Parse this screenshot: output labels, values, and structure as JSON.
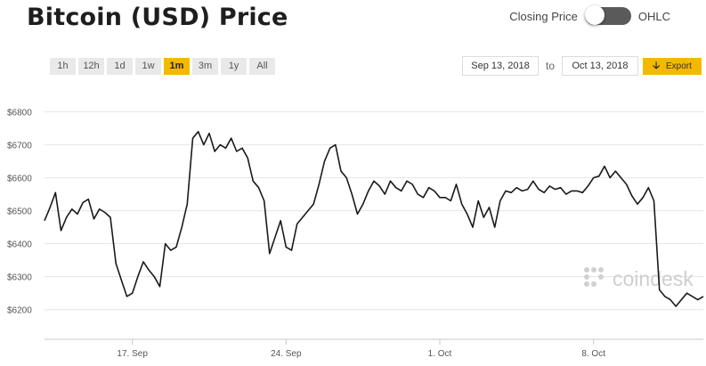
{
  "header": {
    "title": "Bitcoin (USD) Price",
    "toggle_left_label": "Closing Price",
    "toggle_right_label": "OHLC"
  },
  "ranges": [
    {
      "label": "1h",
      "active": false
    },
    {
      "label": "12h",
      "active": false
    },
    {
      "label": "1d",
      "active": false
    },
    {
      "label": "1w",
      "active": false
    },
    {
      "label": "1m",
      "active": true
    },
    {
      "label": "3m",
      "active": false
    },
    {
      "label": "1y",
      "active": false
    },
    {
      "label": "All",
      "active": false
    }
  ],
  "date_range": {
    "from": "Sep 13, 2018",
    "to_label": "to",
    "to": "Oct 13, 2018",
    "export_label": "Export",
    "export_icon": "arrow-down-icon"
  },
  "watermark": {
    "text": "coindesk"
  },
  "colors": {
    "accent": "#f5b800",
    "line": "#1a1a1a",
    "grid": "#e6e6e6"
  },
  "chart_data": {
    "type": "line",
    "title": "Bitcoin (USD) Price",
    "xlabel": "",
    "ylabel": "",
    "x_range": [
      "2018-09-13",
      "2018-10-13"
    ],
    "ylim": [
      6110,
      6880
    ],
    "grid": true,
    "y_ticks": [
      {
        "value": 6200,
        "label": "$6200"
      },
      {
        "value": 6300,
        "label": "$6300"
      },
      {
        "value": 6400,
        "label": "$6400"
      },
      {
        "value": 6500,
        "label": "$6500"
      },
      {
        "value": 6600,
        "label": "$6600"
      },
      {
        "value": 6700,
        "label": "$6700"
      },
      {
        "value": 6800,
        "label": "$6800"
      }
    ],
    "x_ticks": [
      {
        "value": "2018-09-17",
        "label": "17. Sep"
      },
      {
        "value": "2018-09-24",
        "label": "24. Sep"
      },
      {
        "value": "2018-10-01",
        "label": "1. Oct"
      },
      {
        "value": "2018-10-08",
        "label": "8. Oct"
      }
    ],
    "series": [
      {
        "x": [
          "2018-09-13T00:00",
          "2018-09-13T06:00",
          "2018-09-13T12:00",
          "2018-09-13T18:00",
          "2018-09-14T00:00",
          "2018-09-14T06:00",
          "2018-09-14T12:00",
          "2018-09-14T18:00",
          "2018-09-15T00:00",
          "2018-09-15T06:00",
          "2018-09-15T12:00",
          "2018-09-15T18:00",
          "2018-09-16T00:00",
          "2018-09-16T06:00",
          "2018-09-16T12:00",
          "2018-09-16T18:00",
          "2018-09-17T00:00",
          "2018-09-17T06:00",
          "2018-09-17T12:00",
          "2018-09-17T18:00",
          "2018-09-18T00:00",
          "2018-09-18T06:00",
          "2018-09-18T12:00",
          "2018-09-18T18:00",
          "2018-09-19T00:00",
          "2018-09-19T06:00",
          "2018-09-19T12:00",
          "2018-09-19T18:00",
          "2018-09-20T00:00",
          "2018-09-20T06:00",
          "2018-09-20T12:00",
          "2018-09-20T18:00",
          "2018-09-21T00:00",
          "2018-09-21T06:00",
          "2018-09-21T12:00",
          "2018-09-21T18:00",
          "2018-09-22T00:00",
          "2018-09-22T06:00",
          "2018-09-22T12:00",
          "2018-09-22T18:00",
          "2018-09-23T00:00",
          "2018-09-23T06:00",
          "2018-09-23T12:00",
          "2018-09-23T18:00",
          "2018-09-24T00:00",
          "2018-09-24T06:00",
          "2018-09-24T12:00",
          "2018-09-24T18:00",
          "2018-09-25T00:00",
          "2018-09-25T06:00",
          "2018-09-25T12:00",
          "2018-09-25T18:00",
          "2018-09-26T00:00",
          "2018-09-26T06:00",
          "2018-09-26T12:00",
          "2018-09-26T18:00",
          "2018-09-27T00:00",
          "2018-09-27T06:00",
          "2018-09-27T12:00",
          "2018-09-27T18:00",
          "2018-09-28T00:00",
          "2018-09-28T06:00",
          "2018-09-28T12:00",
          "2018-09-28T18:00",
          "2018-09-29T00:00",
          "2018-09-29T06:00",
          "2018-09-29T12:00",
          "2018-09-29T18:00",
          "2018-09-30T00:00",
          "2018-09-30T06:00",
          "2018-09-30T12:00",
          "2018-09-30T18:00",
          "2018-10-01T00:00",
          "2018-10-01T06:00",
          "2018-10-01T12:00",
          "2018-10-01T18:00",
          "2018-10-02T00:00",
          "2018-10-02T06:00",
          "2018-10-02T12:00",
          "2018-10-02T18:00",
          "2018-10-03T00:00",
          "2018-10-03T06:00",
          "2018-10-03T12:00",
          "2018-10-03T18:00",
          "2018-10-04T00:00",
          "2018-10-04T06:00",
          "2018-10-04T12:00",
          "2018-10-04T18:00",
          "2018-10-05T00:00",
          "2018-10-05T06:00",
          "2018-10-05T12:00",
          "2018-10-05T18:00",
          "2018-10-06T00:00",
          "2018-10-06T06:00",
          "2018-10-06T12:00",
          "2018-10-06T18:00",
          "2018-10-07T00:00",
          "2018-10-07T06:00",
          "2018-10-07T12:00",
          "2018-10-07T18:00",
          "2018-10-08T00:00",
          "2018-10-08T06:00",
          "2018-10-08T12:00",
          "2018-10-08T18:00",
          "2018-10-09T00:00",
          "2018-10-09T06:00",
          "2018-10-09T12:00",
          "2018-10-09T18:00",
          "2018-10-10T00:00",
          "2018-10-10T06:00",
          "2018-10-10T12:00",
          "2018-10-10T18:00",
          "2018-10-11T00:00",
          "2018-10-11T06:00",
          "2018-10-11T12:00",
          "2018-10-11T18:00",
          "2018-10-12T00:00",
          "2018-10-12T06:00",
          "2018-10-12T12:00",
          "2018-10-12T18:00",
          "2018-10-13T00:00"
        ],
        "y": [
          6470,
          6510,
          6555,
          6440,
          6480,
          6505,
          6490,
          6525,
          6535,
          6475,
          6505,
          6495,
          6480,
          6340,
          6290,
          6240,
          6250,
          6300,
          6345,
          6320,
          6300,
          6270,
          6400,
          6380,
          6390,
          6450,
          6520,
          6720,
          6740,
          6700,
          6735,
          6680,
          6700,
          6690,
          6720,
          6680,
          6690,
          6660,
          6590,
          6570,
          6530,
          6370,
          6420,
          6470,
          6390,
          6380,
          6460,
          6480,
          6500,
          6520,
          6580,
          6650,
          6690,
          6700,
          6620,
          6600,
          6550,
          6490,
          6520,
          6560,
          6590,
          6575,
          6550,
          6590,
          6570,
          6560,
          6590,
          6580,
          6550,
          6540,
          6570,
          6560,
          6540,
          6540,
          6530,
          6580,
          6520,
          6490,
          6450,
          6530,
          6480,
          6510,
          6450,
          6530,
          6560,
          6555,
          6570,
          6560,
          6565,
          6590,
          6565,
          6555,
          6575,
          6565,
          6570,
          6550,
          6560,
          6560,
          6555,
          6575,
          6600,
          6605,
          6635,
          6600,
          6620,
          6600,
          6580,
          6545,
          6520,
          6540,
          6570,
          6530,
          6260,
          6240,
          6230,
          6210,
          6230,
          6250,
          6240,
          6230,
          6240
        ]
      }
    ]
  }
}
